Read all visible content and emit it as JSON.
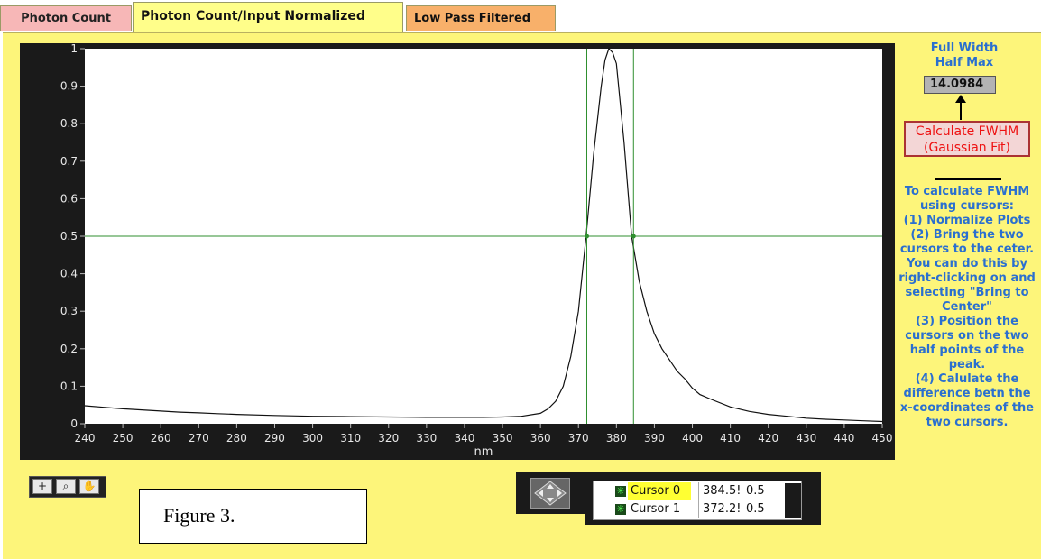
{
  "tabs": [
    "Photon Count",
    "Photon Count/Input Normalized",
    "Low Pass Filtered"
  ],
  "graph": {
    "xlabel": "nm",
    "x_ticks": [
      "240",
      "250",
      "260",
      "270",
      "280",
      "290",
      "300",
      "310",
      "320",
      "330",
      "340",
      "350",
      "360",
      "370",
      "380",
      "390",
      "400",
      "410",
      "420",
      "430",
      "440",
      "450"
    ],
    "y_ticks": [
      "0",
      "0.1",
      "0.2",
      "0.3",
      "0.4",
      "0.5",
      "0.6",
      "0.7",
      "0.8",
      "0.9",
      "1"
    ]
  },
  "chart_data": {
    "type": "line",
    "xlabel": "nm",
    "ylabel": "",
    "xlim": [
      240,
      450
    ],
    "ylim": [
      0,
      1
    ],
    "grid": false,
    "x": [
      240,
      245,
      250,
      255,
      260,
      265,
      270,
      275,
      280,
      290,
      300,
      310,
      320,
      330,
      340,
      345,
      350,
      355,
      360,
      362,
      364,
      366,
      368,
      370,
      372,
      374,
      376,
      377,
      378,
      379,
      380,
      382,
      384,
      386,
      388,
      390,
      392,
      394,
      396,
      398,
      400,
      402,
      405,
      410,
      415,
      420,
      425,
      430,
      435,
      440,
      445,
      450
    ],
    "series": [
      {
        "values": [
          0.048,
          0.044,
          0.04,
          0.037,
          0.034,
          0.031,
          0.029,
          0.027,
          0.025,
          0.022,
          0.02,
          0.019,
          0.018,
          0.017,
          0.017,
          0.017,
          0.018,
          0.02,
          0.028,
          0.04,
          0.06,
          0.1,
          0.18,
          0.3,
          0.5,
          0.72,
          0.9,
          0.97,
          1.0,
          0.99,
          0.96,
          0.75,
          0.5,
          0.38,
          0.3,
          0.24,
          0.2,
          0.17,
          0.14,
          0.12,
          0.095,
          0.078,
          0.065,
          0.045,
          0.033,
          0.025,
          0.02,
          0.015,
          0.012,
          0.01,
          0.008,
          0.006
        ]
      }
    ],
    "cursors": [
      {
        "name": "Cursor 0",
        "x": 384.5,
        "y": 0.5
      },
      {
        "name": "Cursor 1",
        "x": 372.2,
        "y": 0.5
      }
    ]
  },
  "cursor_legend": [
    {
      "name": "Cursor 0",
      "x": "384.5!",
      "y": "0.5"
    },
    {
      "name": "Cursor 1",
      "x": "372.2!",
      "y": "0.5"
    }
  ],
  "fwhm": {
    "title": "Full Width Half Max",
    "value": "14.0984",
    "button": "Calculate FWHM (Gaussian Fit)"
  },
  "instructions": "To calculate FWHM using cursors:\n(1) Normalize Plots\n(2) Bring the two cursors to the ceter. You can do this by right-clicking on and selecting \"Bring to Center\"\n(3) Position the cursors on the two half points of the peak.\n(4) Calulate the difference betn the x-coordinates of the two cursors.",
  "figure_label": "Figure 3.",
  "palette_icons": [
    "crosshair-icon",
    "zoom-icon",
    "pan-hand-icon"
  ],
  "colors": {
    "panel": "#fdf57a",
    "cursor": "#2f8f2f",
    "accent_text": "#2a6fd0",
    "button_text": "#ee1111"
  }
}
